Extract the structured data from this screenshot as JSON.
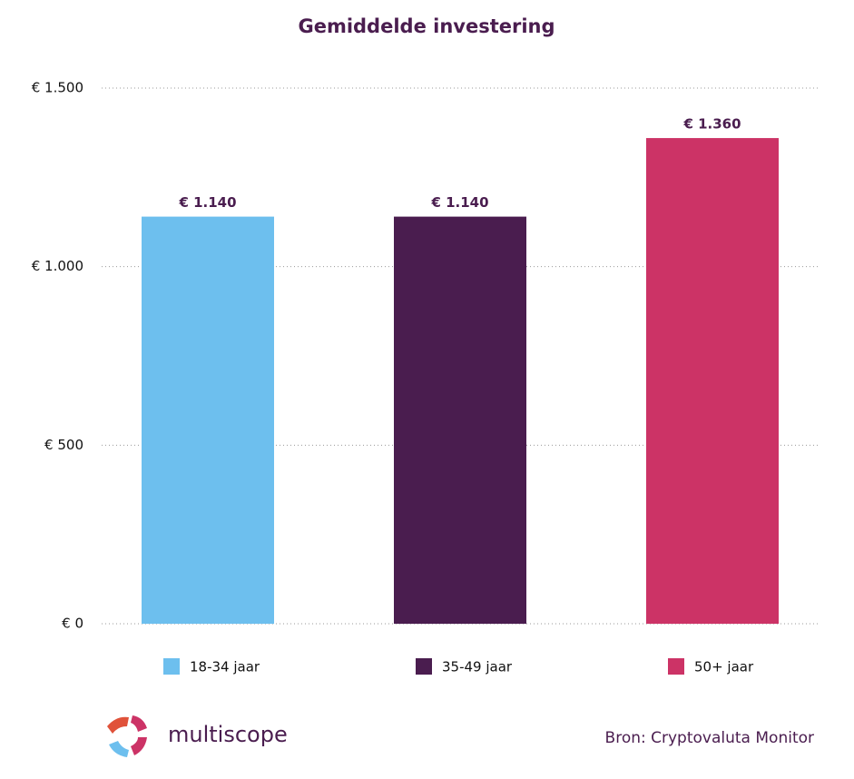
{
  "chart_data": {
    "type": "bar",
    "title": "Gemiddelde investering",
    "categories": [
      null
    ],
    "series": [
      {
        "name": "18-34 jaar",
        "color": "#6dbfee",
        "values": [
          1140
        ],
        "value_labels": [
          "€ 1.140"
        ]
      },
      {
        "name": "35-49 jaar",
        "color": "#4a1d4f",
        "values": [
          1140
        ],
        "value_labels": [
          "€ 1.140"
        ]
      },
      {
        "name": "50+ jaar",
        "color": "#cc3366",
        "values": [
          1360
        ],
        "value_labels": [
          "€ 1.360"
        ]
      }
    ],
    "ylim": [
      0,
      1500
    ],
    "yticks": [
      {
        "value": 0,
        "label": "€ 0"
      },
      {
        "value": 500,
        "label": "€ 500"
      },
      {
        "value": 1000,
        "label": "€ 1.000"
      },
      {
        "value": 1500,
        "label": "€ 1.500"
      }
    ],
    "grid": true,
    "legend": "bottom"
  },
  "footer": {
    "logo": "multiscope",
    "source": "Bron: Cryptovaluta Monitor"
  }
}
